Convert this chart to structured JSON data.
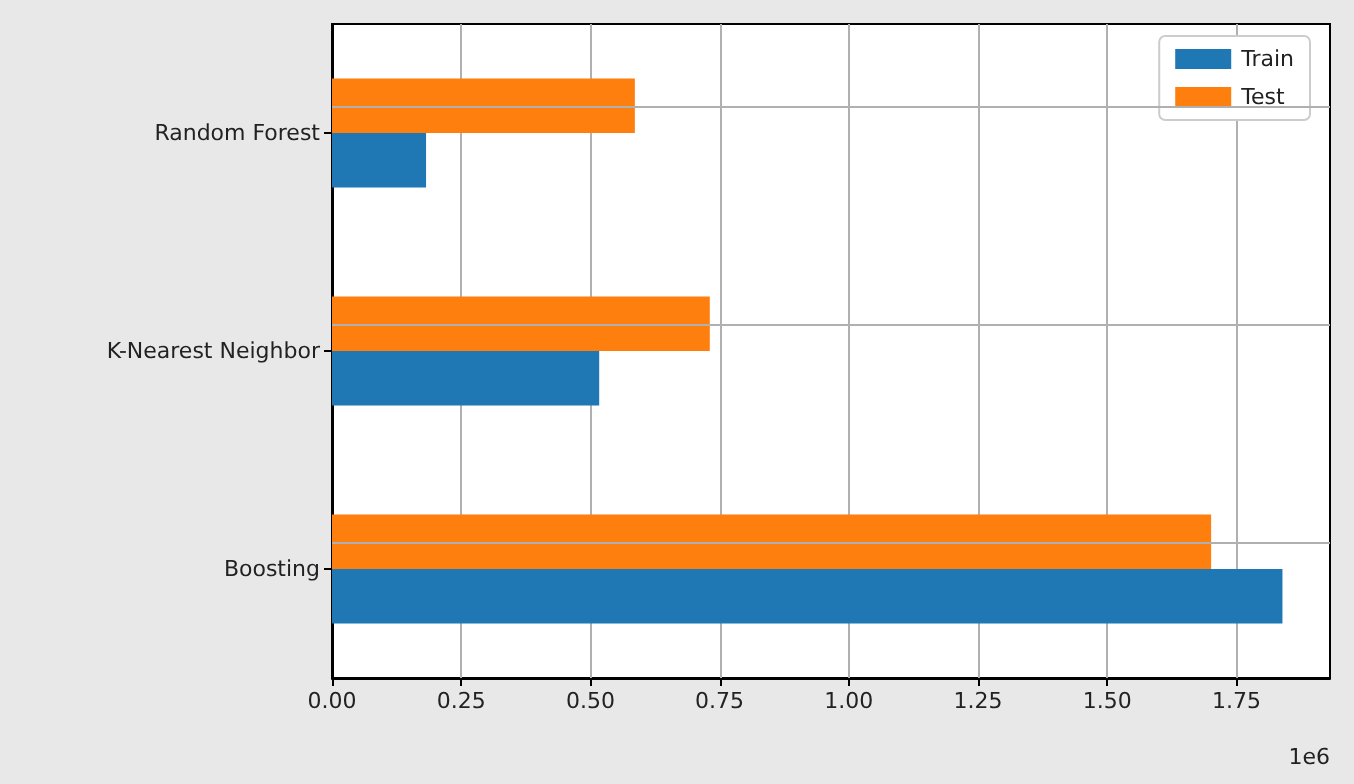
{
  "chart_data": {
    "type": "bar",
    "orientation": "horizontal",
    "categories": [
      "Random Forest",
      "K-Nearest Neighbor",
      "Boosting"
    ],
    "series": [
      {
        "name": "Train",
        "color": "#1f77b4",
        "values": [
          0.182,
          0.517,
          1.839
        ]
      },
      {
        "name": "Test",
        "color": "#ff7f0e",
        "values": [
          0.586,
          0.731,
          1.701
        ]
      }
    ],
    "xlim": [
      0,
      1.931
    ],
    "xticks": [
      {
        "value": 0,
        "label": "0.00"
      },
      0.25,
      {
        "value": 0.5,
        "label": "0.50"
      },
      0.75,
      {
        "value": 1,
        "label": "1.00"
      },
      1.25,
      {
        "value": 1.5,
        "label": "1.50"
      },
      1.75
    ],
    "annotations": [
      "1e6"
    ],
    "grid": true,
    "legend": "top right"
  }
}
